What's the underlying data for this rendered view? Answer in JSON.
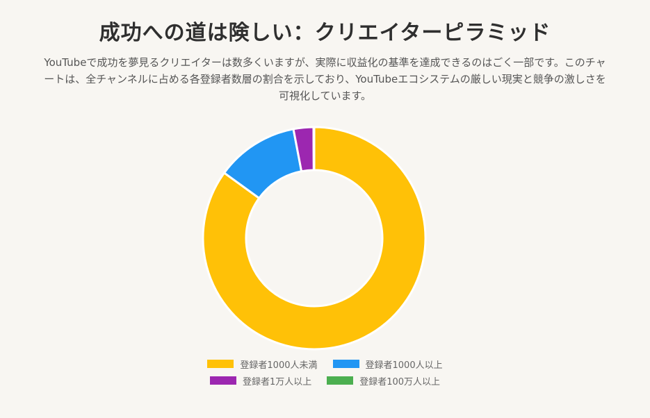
{
  "title": "成功への道は険しい：クリエイターピラミッド",
  "subtitle": "YouTubeで成功を夢見るクリエイターは数多くいますが、実際に収益化の基準を達成できるのはごく一部です。このチャートは、全チャンネルに占める各登録者数層の割合を示しており、YouTubeエコシステムの厳しい現実と競争の激しさを可視化しています。",
  "chart_data": {
    "type": "pie",
    "variant": "doughnut",
    "legend_position": "bottom",
    "categories": [
      "登録者1000人未満",
      "登録者1000人以上",
      "登録者1万人以上",
      "登録者100万人以上"
    ],
    "values": [
      85,
      12,
      2.9,
      0.1
    ],
    "unit": "%",
    "colors": [
      "#FFC107",
      "#2196F3",
      "#9C27B0",
      "#4CAF50"
    ]
  }
}
